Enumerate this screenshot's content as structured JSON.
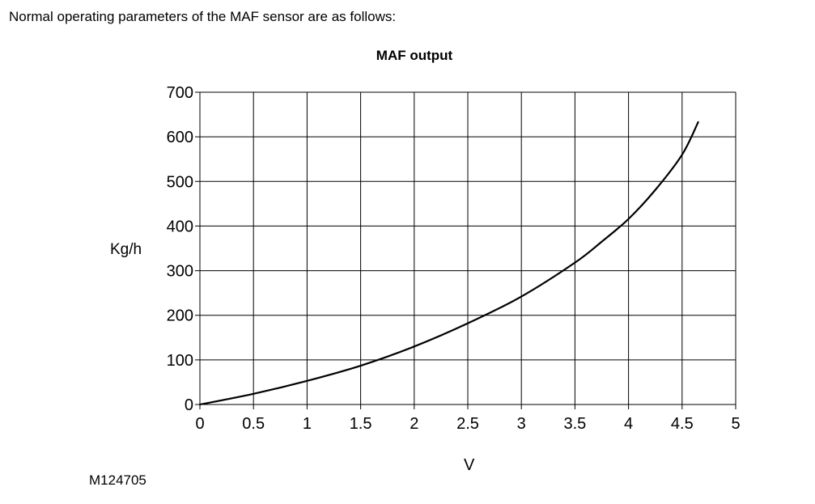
{
  "intro_text": "Normal operating parameters of the MAF sensor are as follows:",
  "figure_id": "M124705",
  "chart_data": {
    "type": "line",
    "title": "MAF output",
    "xlabel": "V",
    "ylabel": "Kg/h",
    "xlim": [
      0,
      5
    ],
    "ylim": [
      0,
      700
    ],
    "x_ticks": [
      "0",
      "0.5",
      "1",
      "1.5",
      "2",
      "2.5",
      "3",
      "3.5",
      "4",
      "4.5",
      "5"
    ],
    "y_ticks": [
      "0",
      "100",
      "200",
      "300",
      "400",
      "500",
      "600",
      "700"
    ],
    "grid": true,
    "series": [
      {
        "x": [
          0,
          0.5,
          1.0,
          1.5,
          2.0,
          2.5,
          3.0,
          3.5,
          3.75,
          4.0,
          4.25,
          4.5,
          4.65
        ],
        "y": [
          0,
          24,
          53,
          87,
          130,
          182,
          242,
          318,
          365,
          416,
          481,
          560,
          633
        ]
      }
    ]
  }
}
